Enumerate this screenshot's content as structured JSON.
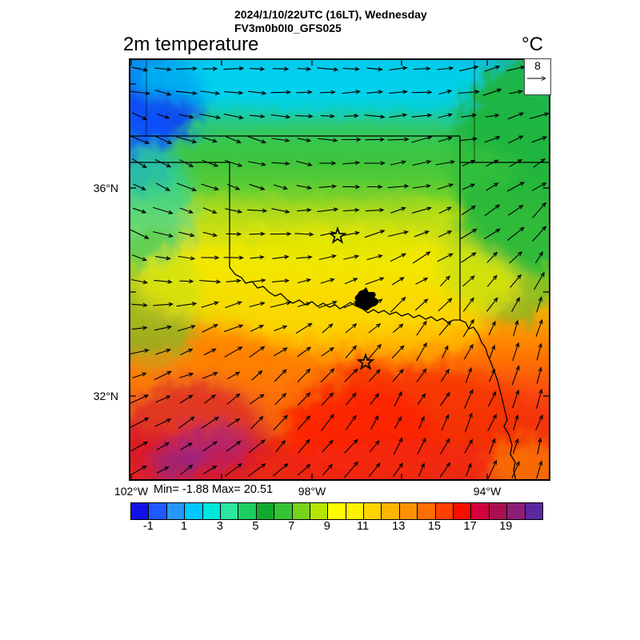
{
  "header": {
    "datetime_line": "2024/1/10/22UTC (16LT), Wednesday",
    "model_line": "FV3m0b0I0_GFS025"
  },
  "plot": {
    "variable_title": "2m temperature",
    "units_label": "°C"
  },
  "wind_reference": {
    "value_label": "8"
  },
  "stats": {
    "minmax_label": "Min= -1.88 Max= 20.51"
  },
  "axes": {
    "lat_labels": [
      "36°N",
      "32°N"
    ],
    "lon_labels": [
      "102°W",
      "98°W",
      "94°W"
    ]
  },
  "colorbar": {
    "tick_labels": [
      "-1",
      "1",
      "3",
      "5",
      "7",
      "9",
      "11",
      "13",
      "15",
      "17",
      "19"
    ],
    "cell_colors": [
      "#1212e6",
      "#1e5aff",
      "#2896ff",
      "#00c8ff",
      "#00e6dc",
      "#2ce6a0",
      "#1ecd62",
      "#12aa2d",
      "#36c336",
      "#78d31a",
      "#b4e400",
      "#fdfd00",
      "#fff000",
      "#ffd200",
      "#ffb400",
      "#ff9100",
      "#ff6e00",
      "#ff4100",
      "#f50f00",
      "#d2003c",
      "#aa0f50",
      "#8c1e78",
      "#5a28a0"
    ]
  },
  "chart_data": {
    "type": "heatmap",
    "title": "2m temperature",
    "datetime": "2024/1/10/22UTC (16LT), Wednesday",
    "model_run": "FV3m0b0I0_GFS025",
    "units": "°C",
    "field_min": -1.88,
    "field_max": 20.51,
    "colorbar_cell_edges_c": [
      -2,
      -1,
      0,
      1,
      2,
      3,
      4,
      5,
      6,
      7,
      8,
      9,
      10,
      11,
      12,
      13,
      14,
      15,
      16,
      17,
      18,
      19,
      20,
      21
    ],
    "colorbar_labeled_ticks_c": [
      -1,
      1,
      3,
      5,
      7,
      9,
      11,
      13,
      15,
      17,
      19
    ],
    "x_axis": {
      "labeled_ticks": [
        "102°W",
        "98°W",
        "94°W"
      ],
      "tick_spacing_deg": 2
    },
    "y_axis": {
      "labeled_ticks": [
        "36°N",
        "32°N"
      ],
      "tick_spacing_deg": 2
    },
    "wind_reference_ms": 8,
    "legend_position": "bottom",
    "overlays": [
      "wind vector arrows",
      "state borders (Oklahoma, Texas, Kansas, Missouri, Arkansas)",
      "Red River boundary with lake",
      "two star markers"
    ],
    "field_description": "Cold cyan/blue air across the north (dark blue pocket northwest), green band over northern Oklahoma and the east, yellow across central Oklahoma, orange then red over Texas to the south, with crimson-purple pockets in the southwest corner"
  }
}
